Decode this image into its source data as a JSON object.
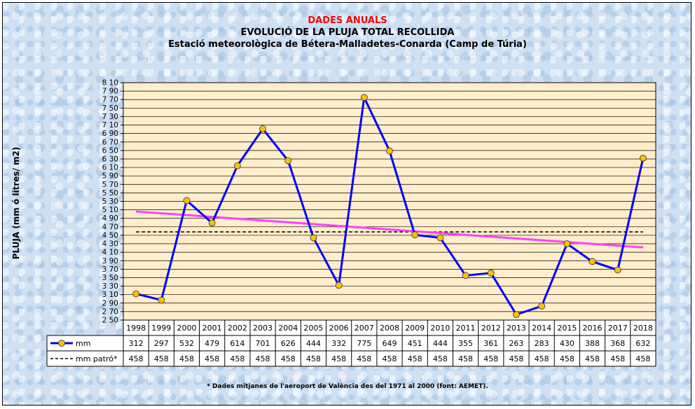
{
  "chart_data": {
    "type": "line",
    "title": "DADES ANUALS",
    "subtitle": "EVOLUCIÓ DE LA PLUJA TOTAL RECOLLIDA",
    "subtitle2": "Estació meteorològica de Bétera-Malladetes-Conarda (Camp de Túria)",
    "ylabel": "PLUJA (mm ó litres/ m2)",
    "xlabel": "",
    "ylim": [
      250,
      810
    ],
    "ytick_step": 20,
    "grid": true,
    "categories": [
      "1998",
      "1999",
      "2000",
      "2001",
      "2002",
      "2003",
      "2004",
      "2005",
      "2006",
      "2007",
      "2008",
      "2009",
      "2010",
      "2011",
      "2012",
      "2013",
      "2014",
      "2015",
      "2016",
      "2017",
      "2018"
    ],
    "series": [
      {
        "name": "mm",
        "values": [
          312,
          297,
          532,
          479,
          614,
          701,
          626,
          444,
          332,
          775,
          649,
          451,
          444,
          355,
          361,
          263,
          283,
          430,
          388,
          368,
          632
        ],
        "color": "#0000ff",
        "marker_color": "#ffc000"
      },
      {
        "name": "mm patró*",
        "values": [
          458,
          458,
          458,
          458,
          458,
          458,
          458,
          458,
          458,
          458,
          458,
          458,
          458,
          458,
          458,
          458,
          458,
          458,
          458,
          458,
          458
        ],
        "color": "#000000",
        "style": "dashed"
      }
    ],
    "trendline": {
      "color": "#ff40ff"
    },
    "legend": "table-below",
    "footnote": "* Dades mitjanes de l'aeroport de València des del 1971 al 2000 (font: AEMET)."
  }
}
